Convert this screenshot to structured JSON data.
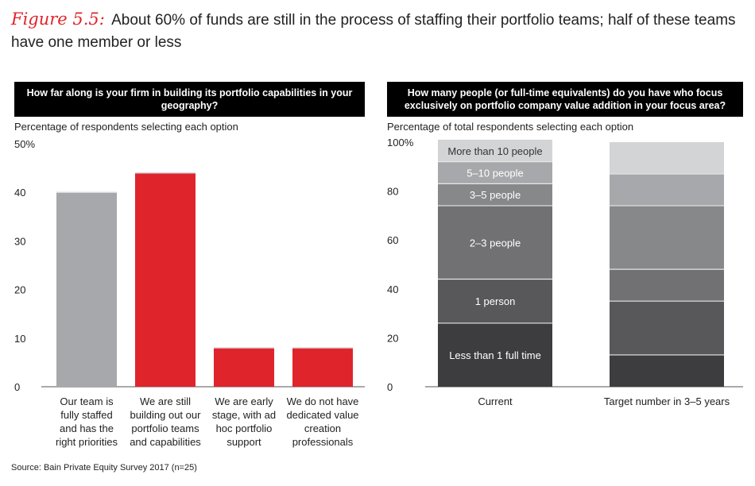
{
  "figure": {
    "label": "Figure 5.5:",
    "title": "About 60% of funds are still in the process of staffing their portfolio teams; half of these teams have one member or less"
  },
  "source": "Source: Bain Private Equity Survey 2017 (n=25)",
  "colors": {
    "red": "#e0242b",
    "gray": "#a7a8ab",
    "ink": "#222222"
  },
  "chart_data": [
    {
      "type": "bar",
      "title": "How far along is your firm in building its portfolio capabilities in your geography?",
      "ylabel": "Percentage of respondents selecting each option",
      "ylim": [
        0,
        50
      ],
      "yticks": [
        0,
        10,
        20,
        30,
        40,
        50
      ],
      "ytick_labels": [
        "0",
        "10",
        "20",
        "30",
        "40",
        "50%"
      ],
      "grid": false,
      "categories": [
        "Our team is fully staffed and has the right priorities",
        "We are still building out our portfolio teams and capabilities",
        "We are early stage, with ad hoc portfolio support",
        "We do not have dedicated value creation professionals"
      ],
      "category_lines": [
        [
          "Our team is",
          "fully staffed",
          "and has the",
          "right priorities"
        ],
        [
          "We are still",
          "building out our",
          "portfolio teams",
          "and capabilities"
        ],
        [
          "We are early",
          "stage, with ad",
          "hoc portfolio",
          "support"
        ],
        [
          "We do not have",
          "dedicated value",
          "creation",
          "professionals"
        ]
      ],
      "values": [
        40,
        44,
        8,
        8
      ],
      "bar_colors": [
        "#a7a8ab",
        "#e0242b",
        "#e0242b",
        "#e0242b"
      ]
    },
    {
      "type": "bar",
      "stacked": true,
      "title": "How many people (or full-time equivalents) do you have who focus exclusively on portfolio company value addition in your focus area?",
      "ylabel": "Percentage of total respondents selecting each option",
      "ylim": [
        0,
        100
      ],
      "yticks": [
        0,
        20,
        40,
        60,
        80,
        100
      ],
      "ytick_labels": [
        "0",
        "20",
        "40",
        "60",
        "80",
        "100%"
      ],
      "grid": false,
      "categories": [
        "Current",
        "Target number in 3–5 years"
      ],
      "series": [
        {
          "name": "Less than 1 full time",
          "color": "#3d3d3f",
          "values": [
            26,
            13
          ]
        },
        {
          "name": "1 person",
          "color": "#58585a",
          "values": [
            18,
            22
          ]
        },
        {
          "name": "2–3 people",
          "color": "#717173",
          "values": [
            30,
            13
          ]
        },
        {
          "name": "3–5 people",
          "color": "#87888a",
          "values": [
            9,
            26
          ]
        },
        {
          "name": "5–10 people",
          "color": "#a7a8ab",
          "values": [
            9,
            13
          ]
        },
        {
          "name": "More than 10 people",
          "color": "#d3d4d6",
          "values": [
            9,
            13
          ]
        }
      ],
      "segment_labels_on": 0
    }
  ]
}
